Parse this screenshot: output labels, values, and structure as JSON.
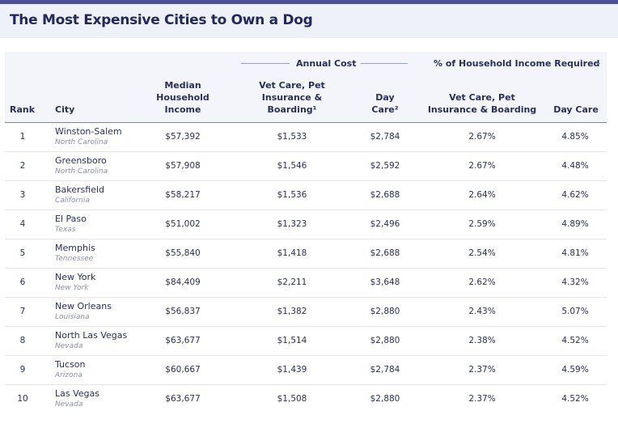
{
  "title": "The Most Expensive Cities to Own a Dog",
  "groups": {
    "annual_cost": "Annual Cost",
    "pct_income": "% of Household Income Required"
  },
  "headers": {
    "rank": "Rank",
    "city": "City",
    "income_1": "Median",
    "income_2": "Household",
    "income_3": "Income",
    "vet_1": "Vet Care, Pet",
    "vet_2": "Insurance &",
    "vet_3": "Boarding¹",
    "day_1": "Day",
    "day_2": "Care²",
    "pvet_1": "Vet Care, Pet",
    "pvet_2": "Insurance & Boarding",
    "pday": "Day Care"
  },
  "rows": [
    {
      "rank": "1",
      "city": "Winston-Salem",
      "state": "North Carolina",
      "income": "$57,392",
      "vet": "$1,533",
      "day": "$2,784",
      "pvet": "2.67%",
      "pday": "4.85%"
    },
    {
      "rank": "2",
      "city": "Greensboro",
      "state": "North Carolina",
      "income": "$57,908",
      "vet": "$1,546",
      "day": "$2,592",
      "pvet": "2.67%",
      "pday": "4.48%"
    },
    {
      "rank": "3",
      "city": "Bakersfield",
      "state": "California",
      "income": "$58,217",
      "vet": "$1,536",
      "day": "$2,688",
      "pvet": "2.64%",
      "pday": "4.62%"
    },
    {
      "rank": "4",
      "city": "El Paso",
      "state": "Texas",
      "income": "$51,002",
      "vet": "$1,323",
      "day": "$2,496",
      "pvet": "2.59%",
      "pday": "4.89%"
    },
    {
      "rank": "5",
      "city": "Memphis",
      "state": "Tennessee",
      "income": "$55,840",
      "vet": "$1,418",
      "day": "$2,688",
      "pvet": "2.54%",
      "pday": "4.81%"
    },
    {
      "rank": "6",
      "city": "New York",
      "state": "New York",
      "income": "$84,409",
      "vet": "$2,211",
      "day": "$3,648",
      "pvet": "2.62%",
      "pday": "4.32%"
    },
    {
      "rank": "7",
      "city": "New Orleans",
      "state": "Louisiana",
      "income": "$56,837",
      "vet": "$1,382",
      "day": "$2,880",
      "pvet": "2.43%",
      "pday": "5.07%"
    },
    {
      "rank": "8",
      "city": "North Las Vegas",
      "state": "Nevada",
      "income": "$63,677",
      "vet": "$1,514",
      "day": "$2,880",
      "pvet": "2.38%",
      "pday": "4.52%"
    },
    {
      "rank": "9",
      "city": "Tucson",
      "state": "Arizona",
      "income": "$60,667",
      "vet": "$1,439",
      "day": "$2,784",
      "pvet": "2.37%",
      "pday": "4.59%"
    },
    {
      "rank": "10",
      "city": "Las Vegas",
      "state": "Nevada",
      "income": "$63,677",
      "vet": "$1,508",
      "day": "$2,880",
      "pvet": "2.37%",
      "pday": "4.52%"
    }
  ]
}
